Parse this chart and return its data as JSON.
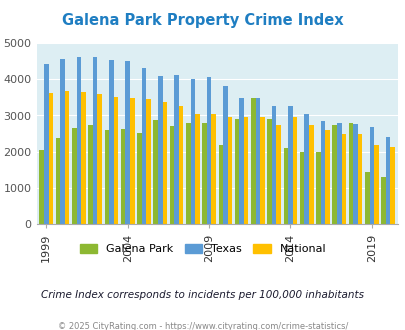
{
  "title": "Galena Park Property Crime Index",
  "subtitle": "Crime Index corresponds to incidents per 100,000 inhabitants",
  "footer": "© 2025 CityRating.com - https://www.cityrating.com/crime-statistics/",
  "years": [
    1999,
    2000,
    2001,
    2002,
    2003,
    2004,
    2005,
    2006,
    2007,
    2008,
    2009,
    2010,
    2011,
    2012,
    2013,
    2014,
    2015,
    2016,
    2017,
    2018,
    2019,
    2020
  ],
  "galena_park": [
    2050,
    2380,
    2650,
    2750,
    2600,
    2620,
    2520,
    2880,
    2700,
    2780,
    2800,
    2200,
    2900,
    3480,
    2900,
    2100,
    2000,
    1990,
    2750,
    2800,
    1450,
    1300
  ],
  "texas": [
    4420,
    4560,
    4610,
    4620,
    4520,
    4490,
    4320,
    4080,
    4120,
    4000,
    4050,
    3820,
    3490,
    3480,
    3260,
    3260,
    3050,
    2840,
    2800,
    2760,
    2680,
    2400
  ],
  "national": [
    3620,
    3680,
    3660,
    3600,
    3520,
    3480,
    3450,
    3360,
    3260,
    3040,
    3050,
    2960,
    2970,
    2960,
    2750,
    2950,
    2750,
    2600,
    2500,
    2480,
    2200,
    2140
  ],
  "bar_colors": {
    "galena_park": "#8db832",
    "texas": "#5b9bd5",
    "national": "#ffc000"
  },
  "bg_color": "#ddeef3",
  "ylim": [
    0,
    5000
  ],
  "yticks": [
    0,
    1000,
    2000,
    3000,
    4000,
    5000
  ],
  "x_tick_years": [
    1999,
    2004,
    2009,
    2014,
    2019
  ],
  "title_color": "#1f7ec2",
  "subtitle_color": "#1a1a2e",
  "footer_color": "#888888",
  "legend_labels": [
    "Galena Park",
    "Texas",
    "National"
  ]
}
